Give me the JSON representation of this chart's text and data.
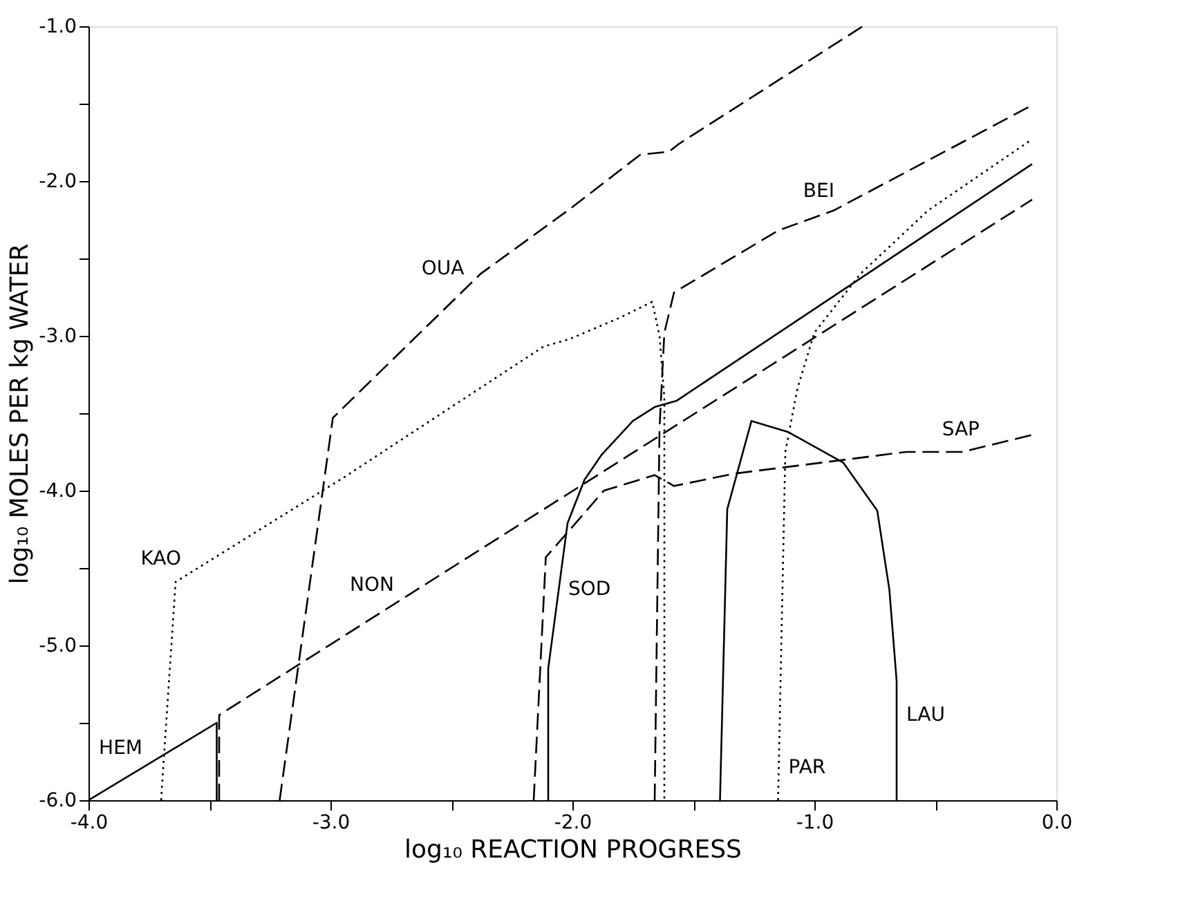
{
  "chart_data": {
    "type": "line",
    "xlabel": "log₁₀ REACTION PROGRESS",
    "ylabel": "log₁₀ MOLES PER kg WATER",
    "xlim": [
      -4.0,
      0.0
    ],
    "ylim": [
      -6.0,
      -1.0
    ],
    "xticks": [
      {
        "value": -4.0,
        "label": "-4.0"
      },
      {
        "value": -3.5,
        "label": null
      },
      {
        "value": -3.0,
        "label": "-3.0"
      },
      {
        "value": -2.5,
        "label": null
      },
      {
        "value": -2.0,
        "label": "-2.0"
      },
      {
        "value": -1.5,
        "label": null
      },
      {
        "value": -1.0,
        "label": "-1.0"
      },
      {
        "value": -0.5,
        "label": null
      },
      {
        "value": 0.0,
        "label": "0.0"
      }
    ],
    "yticks": [
      {
        "value": -6.0,
        "label": "-6.0"
      },
      {
        "value": -5.5,
        "label": null
      },
      {
        "value": -5.0,
        "label": "-5.0"
      },
      {
        "value": -4.5,
        "label": null
      },
      {
        "value": -4.0,
        "label": "-4.0"
      },
      {
        "value": -3.5,
        "label": null
      },
      {
        "value": -3.0,
        "label": "-3.0"
      },
      {
        "value": -2.5,
        "label": null
      },
      {
        "value": -2.0,
        "label": "-2.0"
      },
      {
        "value": -1.5,
        "label": null
      },
      {
        "value": -1.0,
        "label": "-1.0"
      }
    ],
    "grid": false,
    "marker": "none",
    "series": [
      {
        "color": "#000000",
        "line_style": "solid",
        "x": [
          -4.0,
          -3.47,
          -3.47
        ],
        "values": [
          -6.0,
          -5.5,
          -6.0
        ]
      },
      {
        "color": "#000000",
        "line_style": "dotted",
        "x": [
          -3.7,
          -3.64,
          -2.94,
          -2.12,
          -2.01,
          -1.8,
          -1.67,
          -1.64,
          -1.62,
          -1.62
        ],
        "values": [
          -6.0,
          -4.59,
          -3.91,
          -3.07,
          -3.02,
          -2.88,
          -2.78,
          -3.0,
          -3.4,
          -6.0
        ]
      },
      {
        "color": "#000000",
        "line_style": "dashed",
        "x": [
          -3.21,
          -2.99,
          -2.38,
          -2.01,
          -1.72,
          -1.6,
          -1.56,
          -0.9,
          -0.8
        ],
        "values": [
          -6.0,
          -3.53,
          -2.6,
          -2.18,
          -1.83,
          -1.81,
          -1.76,
          -1.1,
          -1.0
        ]
      },
      {
        "color": "#000000",
        "line_style": "dashed",
        "x": [
          -1.66,
          -1.64,
          -1.62,
          -1.58,
          -1.15,
          -0.92,
          -0.1
        ],
        "values": [
          -6.0,
          -3.6,
          -2.98,
          -2.72,
          -2.32,
          -2.19,
          -1.51
        ]
      },
      {
        "color": "#000000",
        "line_style": "dashed",
        "x": [
          -3.46,
          -3.46,
          -0.1
        ],
        "values": [
          -6.0,
          -5.45,
          -2.12
        ]
      },
      {
        "color": "#000000",
        "line_style": "solid",
        "x": [
          -2.1,
          -2.1,
          -2.02,
          -1.95,
          -1.88,
          -1.75,
          -1.66,
          -1.57,
          -0.1
        ],
        "values": [
          -6.0,
          -5.15,
          -4.21,
          -3.93,
          -3.77,
          -3.55,
          -3.46,
          -3.42,
          -1.89
        ]
      },
      {
        "color": "#000000",
        "line_style": "dashed",
        "x": [
          -2.16,
          -2.11,
          -2.02,
          -1.87,
          -1.66,
          -1.58,
          -1.33,
          -0.62,
          -0.39,
          -0.1
        ],
        "values": [
          -6.0,
          -4.43,
          -4.27,
          -4.0,
          -3.9,
          -3.97,
          -3.89,
          -3.75,
          -3.75,
          -3.64
        ]
      },
      {
        "color": "#000000",
        "line_style": "solid",
        "x": [
          -1.39,
          -1.36,
          -1.26,
          -1.11,
          -0.88,
          -0.74,
          -0.69,
          -0.66,
          -0.66
        ],
        "values": [
          -6.0,
          -4.12,
          -3.55,
          -3.62,
          -3.82,
          -4.13,
          -4.64,
          -5.23,
          -6.0
        ]
      },
      {
        "color": "#000000",
        "line_style": "dotted",
        "x": [
          -1.15,
          -1.12,
          -1.07,
          -1.0,
          -0.81,
          -0.53,
          -0.1
        ],
        "values": [
          -6.0,
          -3.75,
          -3.34,
          -2.98,
          -2.6,
          -2.19,
          -1.73
        ]
      }
    ],
    "annotations": [
      {
        "text": "HEM",
        "x": -3.76,
        "y": -5.774
      },
      {
        "text": "KAO",
        "x": -3.6,
        "y": -4.551
      },
      {
        "text": "OUA",
        "x": -2.43,
        "y": -2.676
      },
      {
        "text": "BEI",
        "x": -0.9,
        "y": -2.173
      },
      {
        "text": "NON",
        "x": -2.72,
        "y": -4.717
      },
      {
        "text": "SOD",
        "x": -2.057,
        "y": -4.64
      },
      {
        "text": "SAP",
        "x": -0.3,
        "y": -3.716
      },
      {
        "text": "LAU",
        "x": -0.66,
        "y": -5.45
      },
      {
        "text": "PAR",
        "x": -1.147,
        "y": -5.79
      }
    ]
  }
}
